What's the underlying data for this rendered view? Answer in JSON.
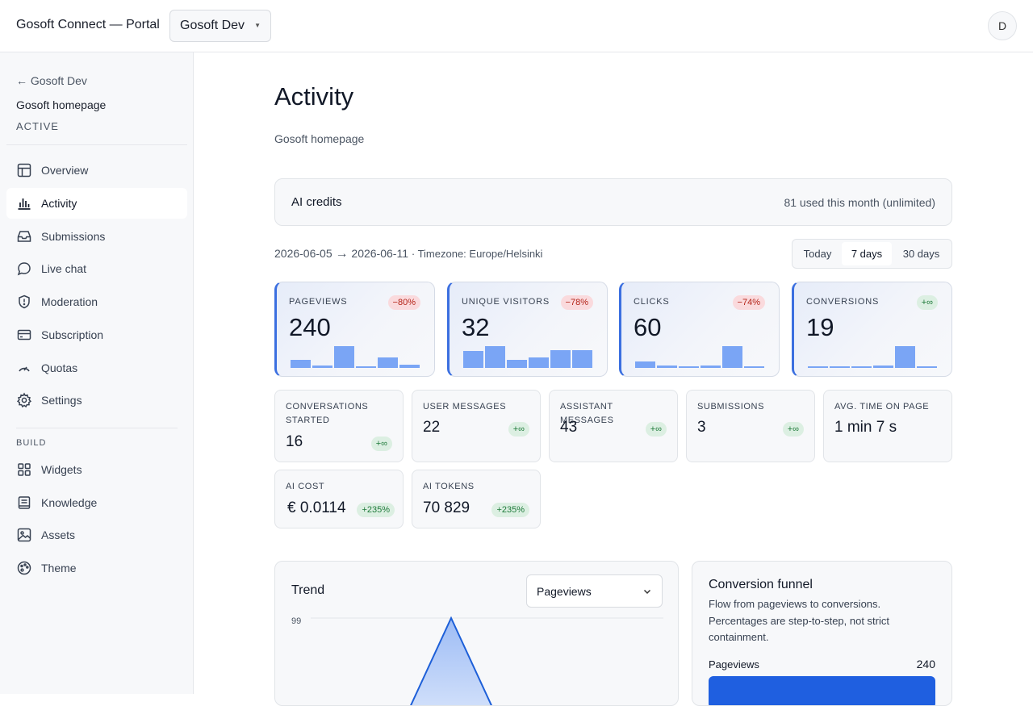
{
  "header": {
    "app_title": "Gosoft Connect — Portal",
    "org_select": "Gosoft Dev",
    "avatar_initial": "D"
  },
  "sidebar": {
    "back_link": "← Gosoft Dev",
    "site_name": "Gosoft homepage",
    "site_status": "ACTIVE",
    "items": [
      {
        "label": "Overview",
        "icon": "table-icon"
      },
      {
        "label": "Activity",
        "icon": "bar-chart-icon",
        "active": true
      },
      {
        "label": "Submissions",
        "icon": "inbox-icon"
      },
      {
        "label": "Live chat",
        "icon": "chat-bubble-icon"
      },
      {
        "label": "Moderation",
        "icon": "shield-alert-icon"
      },
      {
        "label": "Subscription",
        "icon": "credit-card-icon"
      },
      {
        "label": "Quotas",
        "icon": "gauge-icon"
      },
      {
        "label": "Settings",
        "icon": "gear-icon"
      }
    ],
    "build_label": "BUILD",
    "build_items": [
      {
        "label": "Widgets",
        "icon": "grid-icon"
      },
      {
        "label": "Knowledge",
        "icon": "book-icon"
      },
      {
        "label": "Assets",
        "icon": "image-icon"
      },
      {
        "label": "Theme",
        "icon": "palette-icon"
      }
    ]
  },
  "main": {
    "title": "Activity",
    "subtitle": "Gosoft homepage",
    "credits": {
      "title": "AI credits",
      "value": "81 used this month (unlimited)"
    },
    "range": {
      "start": "2026-06-05",
      "arrow": "→",
      "end": "2026-06-11",
      "timezone": "· Timezone: Europe/Helsinki"
    },
    "range_options": [
      "Today",
      "7 days",
      "30 days"
    ],
    "selected_range": "7 days",
    "kpis": [
      {
        "label": "PAGEVIEWS",
        "value": "240",
        "delta": "−80%",
        "trend": "negative",
        "bars": [
          0.37,
          0.1,
          0.95,
          0.05,
          0.45,
          0.15
        ]
      },
      {
        "label": "UNIQUE VISITORS",
        "value": "32",
        "delta": "−78%",
        "trend": "negative",
        "bars": [
          0.75,
          0.95,
          0.35,
          0.45,
          0.8,
          0.8
        ]
      },
      {
        "label": "CLICKS",
        "value": "60",
        "delta": "−74%",
        "trend": "negative",
        "bars": [
          0.3,
          0.1,
          0.05,
          0.1,
          0.95,
          0.05
        ]
      },
      {
        "label": "CONVERSIONS",
        "value": "19",
        "delta": "+∞",
        "trend": "positive",
        "bars": [
          0.05,
          0.05,
          0.05,
          0.1,
          0.95,
          0.05
        ]
      }
    ],
    "stats": [
      {
        "label": "CONVERSATIONS STARTED",
        "value": "16",
        "delta": "+∞"
      },
      {
        "label": "USER MESSAGES",
        "value": "22",
        "delta": "+∞"
      },
      {
        "label": "ASSISTANT MESSAGES",
        "value": "43",
        "delta": "+∞"
      },
      {
        "label": "SUBMISSIONS",
        "value": "3",
        "delta": "+∞"
      },
      {
        "label": "AVG. TIME ON PAGE",
        "value": "1 min 7 s",
        "delta": ""
      },
      {
        "label": "AI COST",
        "value": "€ 0.0114",
        "delta": "+235%"
      },
      {
        "label": "AI TOKENS",
        "value": "70 829",
        "delta": "+235%"
      }
    ],
    "trend": {
      "title": "Trend",
      "metric": "Pageviews",
      "ymax_label": "99"
    },
    "funnel": {
      "title": "Conversion funnel",
      "description": "Flow from pageviews to conversions. Percentages are step-to-step, not strict containment.",
      "step_label": "Pageviews",
      "step_value": "240"
    }
  },
  "chart_data": {
    "type": "area",
    "ylim": [
      0,
      99
    ],
    "visible_peak": 99,
    "series": [
      {
        "values": [
          null,
          99,
          null
        ]
      }
    ]
  },
  "colors": {
    "accent": "#3b6fe0",
    "bar": "#7aa5f5",
    "negative_badge_bg": "#fadadd",
    "positive_badge_bg": "#dcefe2",
    "funnel_bar": "#1f5fe0"
  }
}
